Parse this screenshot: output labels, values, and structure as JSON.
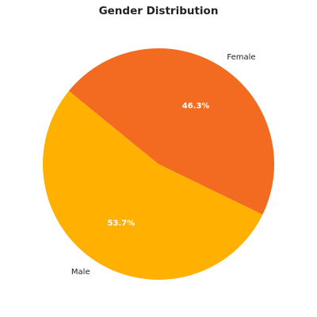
{
  "chart_data": {
    "type": "pie",
    "title": "Gender Distribution",
    "categories": [
      "Male",
      "Female"
    ],
    "values": [
      53.7,
      46.3
    ],
    "value_labels": [
      "53.7%",
      "46.3%"
    ],
    "colors": [
      "#FFB000",
      "#F26B21"
    ]
  }
}
